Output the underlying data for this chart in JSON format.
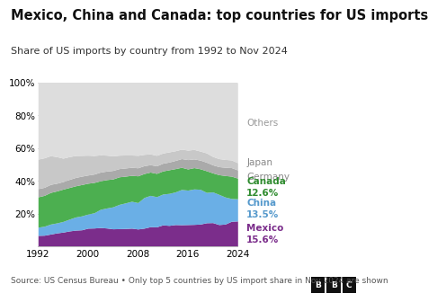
{
  "title": "Mexico, China and Canada: top countries for US imports",
  "subtitle": "Share of US imports by country from 1992 to Nov 2024",
  "source": "Source: US Census Bureau • Only top 5 countries by US import share in Nov 2024 are shown",
  "years": [
    1992,
    1993,
    1994,
    1995,
    1996,
    1997,
    1998,
    1999,
    2000,
    2001,
    2002,
    2003,
    2004,
    2005,
    2006,
    2007,
    2008,
    2009,
    2010,
    2011,
    2012,
    2013,
    2014,
    2015,
    2016,
    2017,
    2018,
    2019,
    2020,
    2021,
    2022,
    2023,
    2024
  ],
  "mexico": [
    6.8,
    6.9,
    7.6,
    8.3,
    8.8,
    9.5,
    10.0,
    10.2,
    11.2,
    11.3,
    11.6,
    11.3,
    10.8,
    10.9,
    11.0,
    11.2,
    10.7,
    11.2,
    12.1,
    12.0,
    13.2,
    12.9,
    13.4,
    13.3,
    13.4,
    13.5,
    13.7,
    14.5,
    14.6,
    13.4,
    13.7,
    15.4,
    15.6
  ],
  "china": [
    5.0,
    5.5,
    6.1,
    6.1,
    6.5,
    7.2,
    8.0,
    8.5,
    8.6,
    9.3,
    11.1,
    12.2,
    13.4,
    14.8,
    15.6,
    16.4,
    16.1,
    18.7,
    19.1,
    18.4,
    18.8,
    19.5,
    19.9,
    21.5,
    21.0,
    21.6,
    21.2,
    18.5,
    18.7,
    18.4,
    16.5,
    13.9,
    13.5
  ],
  "canada": [
    18.5,
    18.8,
    19.3,
    19.5,
    19.7,
    19.3,
    19.0,
    19.1,
    18.8,
    18.5,
    17.4,
    17.3,
    17.0,
    16.8,
    16.3,
    15.8,
    16.3,
    14.6,
    14.2,
    14.2,
    14.1,
    14.4,
    14.2,
    13.5,
    12.9,
    13.0,
    12.5,
    13.2,
    11.6,
    12.0,
    13.1,
    13.6,
    12.6
  ],
  "germany": [
    5.0,
    4.9,
    4.9,
    4.7,
    4.6,
    4.9,
    5.1,
    5.1,
    5.0,
    5.1,
    5.3,
    5.2,
    5.2,
    5.0,
    5.0,
    4.9,
    4.9,
    4.8,
    4.5,
    4.6,
    4.7,
    4.7,
    5.0,
    5.3,
    5.7,
    5.3,
    5.3,
    5.2,
    4.9,
    4.9,
    5.0,
    5.2,
    5.0
  ],
  "japan": [
    18.0,
    18.0,
    17.5,
    16.2,
    14.3,
    13.9,
    13.4,
    12.7,
    12.1,
    11.3,
    10.5,
    9.7,
    8.9,
    8.2,
    7.9,
    7.5,
    7.6,
    6.9,
    6.6,
    6.4,
    6.2,
    6.2,
    5.9,
    5.8,
    5.8,
    5.8,
    5.5,
    5.7,
    5.1,
    4.9,
    4.8,
    4.7,
    4.4
  ],
  "colors": {
    "mexico": "#7B2D8B",
    "china": "#6AAFE6",
    "canada": "#4CAF50",
    "germany": "#AAAAAA",
    "japan": "#C8C8C8",
    "others": "#DDDDDD"
  },
  "label_colors": {
    "mexico": "#7B2D8B",
    "china": "#5599CC",
    "canada": "#2E8B2E",
    "germany": "#888888",
    "japan": "#888888",
    "others": "#999999"
  },
  "xlim": [
    1992,
    2024
  ],
  "ylim": [
    0,
    100
  ],
  "xticks": [
    1992,
    2000,
    2008,
    2016,
    2024
  ],
  "yticks": [
    0,
    20,
    40,
    60,
    80,
    100
  ],
  "background_color": "#ffffff",
  "title_fontsize": 10.5,
  "subtitle_fontsize": 8.0,
  "source_fontsize": 6.5
}
